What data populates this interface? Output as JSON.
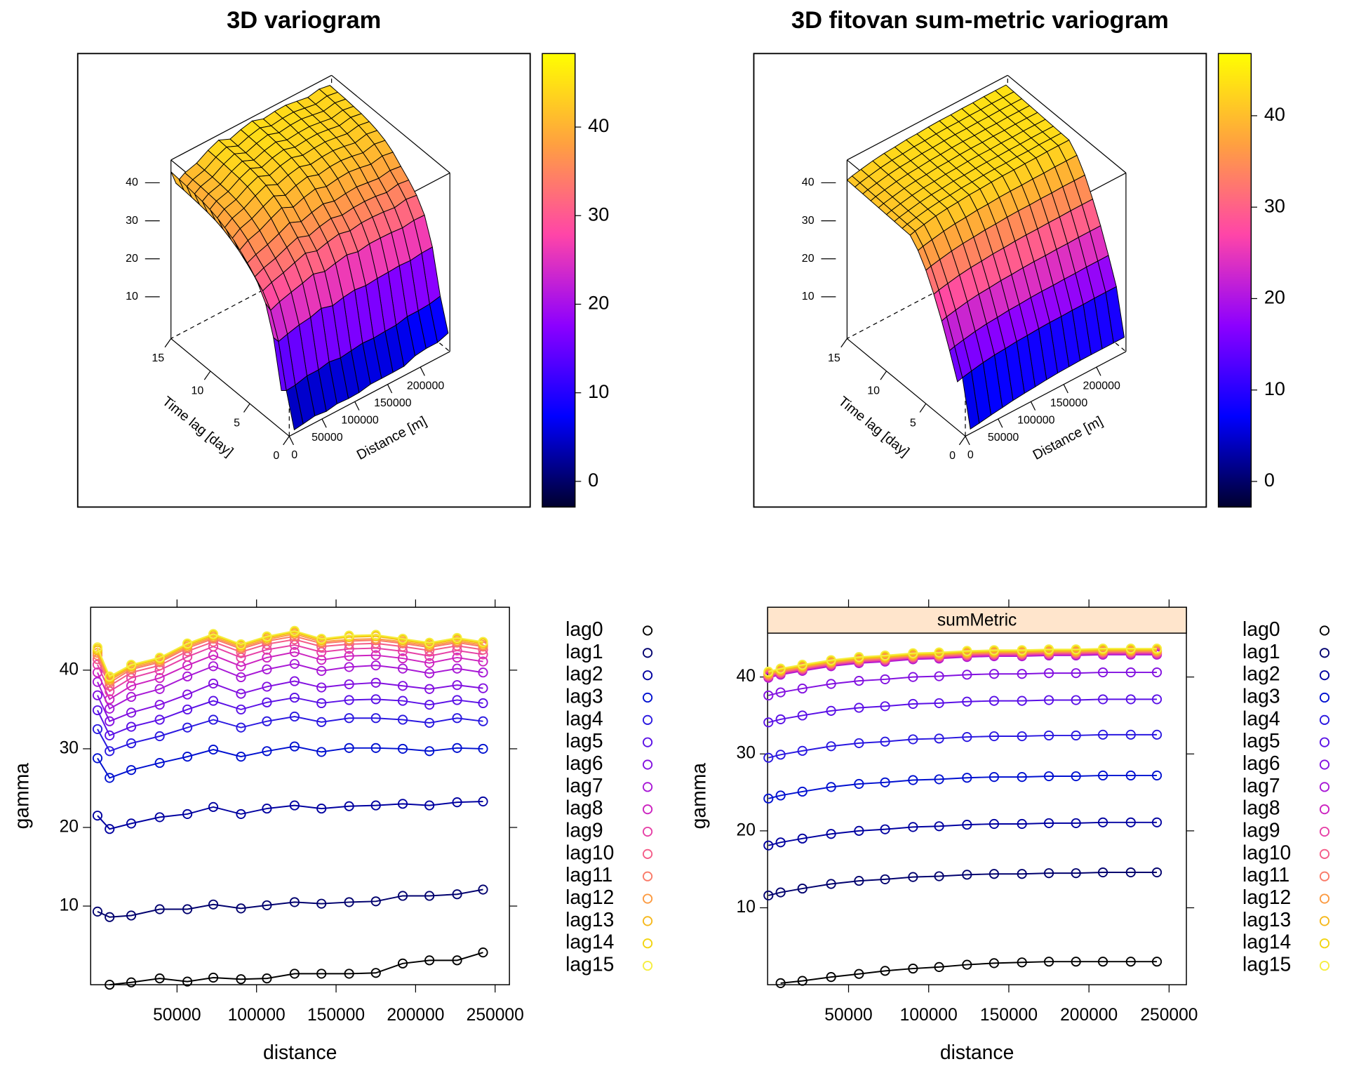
{
  "chart_data": [
    {
      "type": "surface3d",
      "title": "3D variogram",
      "xlabel": "Distance [m]",
      "ylabel": "Time lag [day]",
      "xlim": [
        0,
        245000
      ],
      "ylim": [
        0,
        15
      ],
      "zlim": [
        -1,
        46
      ],
      "xticks": [
        0,
        50000,
        100000,
        150000,
        200000
      ],
      "yticks": [
        0,
        5,
        10,
        15
      ],
      "zticks": [
        10,
        20,
        30,
        40
      ],
      "clim": [
        -2.9,
        48.3
      ],
      "cticks": [
        0,
        10,
        20,
        30,
        40
      ],
      "colormap": [
        "#00002e",
        "#0000ff",
        "#8c00ff",
        "#ff45a8",
        "#ffa040",
        "#ffff00"
      ]
    },
    {
      "type": "surface3d",
      "title": "3D fitovan sum-metric variogram",
      "xlabel": "Distance [m]",
      "ylabel": "Time lag [day]",
      "xlim": [
        0,
        245000
      ],
      "ylim": [
        0,
        15
      ],
      "zlim": [
        -1,
        46
      ],
      "xticks": [
        0,
        50000,
        100000,
        150000,
        200000
      ],
      "yticks": [
        0,
        5,
        10,
        15
      ],
      "zticks": [
        10,
        20,
        30,
        40
      ],
      "clim": [
        -2.8,
        46.8
      ],
      "cticks": [
        0,
        10,
        20,
        30,
        40
      ],
      "colormap": [
        "#00002e",
        "#0000ff",
        "#8c00ff",
        "#ff45a8",
        "#ffa040",
        "#ffff00"
      ]
    },
    {
      "type": "line",
      "xlabel": "distance",
      "ylabel": "gamma",
      "xlim": [
        -4300,
        259000
      ],
      "ylim": [
        0,
        48
      ],
      "xticks": [
        50000,
        100000,
        150000,
        200000,
        250000
      ],
      "yticks": [
        10,
        20,
        30,
        40
      ],
      "x": [
        0,
        7600,
        21200,
        39100,
        56500,
        72800,
        90200,
        106500,
        123900,
        140800,
        158200,
        175000,
        191900,
        208700,
        226100,
        242400
      ],
      "series": [
        {
          "name": "lag0",
          "color": "#000000",
          "values": [
            null,
            0,
            0.3,
            0.8,
            0.4,
            0.9,
            0.7,
            0.8,
            1.4,
            1.4,
            1.4,
            1.5,
            2.7,
            3.1,
            3.1,
            4.1
          ]
        },
        {
          "name": "lag1",
          "color": "#00006e",
          "values": [
            9.3,
            8.6,
            8.8,
            9.6,
            9.6,
            10.2,
            9.7,
            10.1,
            10.5,
            10.3,
            10.5,
            10.6,
            11.3,
            11.3,
            11.5,
            12.1
          ]
        },
        {
          "name": "lag2",
          "color": "#0000a0",
          "values": [
            21.5,
            19.8,
            20.5,
            21.3,
            21.7,
            22.6,
            21.7,
            22.4,
            22.8,
            22.4,
            22.7,
            22.8,
            23.0,
            22.8,
            23.2,
            23.3
          ]
        },
        {
          "name": "lag3",
          "color": "#0010d0",
          "values": [
            28.8,
            26.3,
            27.3,
            28.2,
            29.0,
            29.9,
            29.0,
            29.7,
            30.3,
            29.6,
            30.1,
            30.1,
            30.0,
            29.7,
            30.1,
            30.0
          ]
        },
        {
          "name": "lag4",
          "color": "#2a18e0",
          "values": [
            32.5,
            29.7,
            30.7,
            31.6,
            32.7,
            33.7,
            32.7,
            33.5,
            34.1,
            33.4,
            33.9,
            33.9,
            33.7,
            33.3,
            33.9,
            33.5
          ]
        },
        {
          "name": "lag5",
          "color": "#5a10e6",
          "values": [
            34.9,
            31.7,
            32.8,
            33.7,
            35.0,
            36.1,
            35.0,
            35.9,
            36.5,
            35.8,
            36.2,
            36.3,
            36.1,
            35.6,
            36.2,
            35.8
          ]
        },
        {
          "name": "lag6",
          "color": "#8210e0",
          "values": [
            36.8,
            33.5,
            34.6,
            35.6,
            36.9,
            38.3,
            37.0,
            37.9,
            38.6,
            37.8,
            38.2,
            38.4,
            38.0,
            37.6,
            38.1,
            37.7
          ]
        },
        {
          "name": "lag7",
          "color": "#a818d6",
          "values": [
            38.5,
            35.1,
            36.6,
            37.6,
            39.2,
            40.5,
            39.1,
            40.1,
            40.8,
            39.9,
            40.4,
            40.6,
            40.2,
            39.6,
            40.2,
            39.7
          ]
        },
        {
          "name": "lag8",
          "color": "#cc22c0",
          "values": [
            39.7,
            36.3,
            38.0,
            39.0,
            40.6,
            41.9,
            40.5,
            41.6,
            42.3,
            41.3,
            41.8,
            41.9,
            41.5,
            40.9,
            41.6,
            41.1
          ]
        },
        {
          "name": "lag9",
          "color": "#e640a6",
          "values": [
            40.7,
            37.3,
            39.0,
            40.0,
            41.7,
            43.0,
            41.6,
            42.6,
            43.2,
            42.3,
            42.7,
            42.8,
            42.4,
            41.8,
            42.5,
            42.0
          ]
        },
        {
          "name": "lag10",
          "color": "#f45c88",
          "values": [
            41.4,
            38.0,
            39.7,
            40.6,
            42.4,
            43.6,
            42.3,
            43.3,
            43.9,
            43.0,
            43.3,
            43.4,
            43.0,
            42.5,
            43.1,
            42.6
          ]
        },
        {
          "name": "lag11",
          "color": "#fa7a68",
          "values": [
            41.9,
            38.4,
            40.1,
            41.0,
            42.8,
            44.0,
            42.7,
            43.7,
            44.3,
            43.4,
            43.7,
            43.8,
            43.4,
            42.9,
            43.5,
            43.0
          ]
        },
        {
          "name": "lag12",
          "color": "#fc9a40",
          "values": [
            42.2,
            38.7,
            40.3,
            41.2,
            43.0,
            44.2,
            42.9,
            43.9,
            44.6,
            43.6,
            43.9,
            44.0,
            43.6,
            43.1,
            43.7,
            43.2
          ]
        },
        {
          "name": "lag13",
          "color": "#f6b81a",
          "values": [
            42.5,
            38.9,
            40.5,
            41.4,
            43.2,
            44.4,
            43.1,
            44.1,
            44.8,
            43.8,
            44.2,
            44.3,
            43.8,
            43.3,
            43.9,
            43.4
          ]
        },
        {
          "name": "lag14",
          "color": "#f2d410",
          "values": [
            42.7,
            39.1,
            40.6,
            41.5,
            43.3,
            44.5,
            43.2,
            44.2,
            44.9,
            43.9,
            44.3,
            44.4,
            43.9,
            43.4,
            44.0,
            43.5
          ]
        },
        {
          "name": "lag15",
          "color": "#f6ee40",
          "values": [
            42.9,
            39.2,
            40.7,
            41.6,
            43.4,
            44.6,
            43.3,
            44.3,
            45.0,
            44.0,
            44.4,
            44.5,
            44.0,
            43.5,
            44.1,
            43.6
          ]
        }
      ]
    },
    {
      "type": "line",
      "xlabel": "distance",
      "ylabel": "gamma",
      "strip": "sumMetric",
      "xlim": [
        -500,
        260800
      ],
      "ylim": [
        0,
        45.7
      ],
      "xticks": [
        50000,
        100000,
        150000,
        200000,
        250000
      ],
      "yticks": [
        10,
        20,
        30,
        40
      ],
      "x": [
        0,
        7600,
        21200,
        39100,
        56500,
        72800,
        90200,
        106500,
        123900,
        140800,
        158200,
        175000,
        191900,
        208700,
        226100,
        242400
      ],
      "series": [
        {
          "name": "lag0",
          "color": "#000000",
          "values": [
            null,
            0.2,
            0.5,
            1.0,
            1.4,
            1.8,
            2.1,
            2.3,
            2.6,
            2.8,
            2.9,
            3.0,
            3.0,
            3.0,
            3.0,
            3.0
          ]
        },
        {
          "name": "lag1",
          "color": "#00006e",
          "values": [
            11.6,
            12.0,
            12.5,
            13.1,
            13.5,
            13.7,
            14.0,
            14.1,
            14.3,
            14.4,
            14.4,
            14.5,
            14.5,
            14.6,
            14.6,
            14.6
          ]
        },
        {
          "name": "lag2",
          "color": "#0000a0",
          "values": [
            18.1,
            18.5,
            19.0,
            19.6,
            20.0,
            20.2,
            20.5,
            20.6,
            20.8,
            20.9,
            20.9,
            21.0,
            21.0,
            21.1,
            21.1,
            21.1
          ]
        },
        {
          "name": "lag3",
          "color": "#0010d0",
          "values": [
            24.2,
            24.6,
            25.1,
            25.7,
            26.1,
            26.3,
            26.6,
            26.7,
            26.9,
            27.0,
            27.0,
            27.1,
            27.1,
            27.2,
            27.2,
            27.2
          ]
        },
        {
          "name": "lag4",
          "color": "#2a18e0",
          "values": [
            29.5,
            29.9,
            30.4,
            31.0,
            31.4,
            31.6,
            31.9,
            32.0,
            32.2,
            32.3,
            32.3,
            32.4,
            32.4,
            32.5,
            32.5,
            32.5
          ]
        },
        {
          "name": "lag5",
          "color": "#5a10e6",
          "values": [
            34.1,
            34.5,
            35.0,
            35.6,
            36.0,
            36.2,
            36.5,
            36.6,
            36.8,
            36.9,
            36.9,
            37.0,
            37.0,
            37.1,
            37.1,
            37.1
          ]
        },
        {
          "name": "lag6",
          "color": "#8210e0",
          "values": [
            37.6,
            38.0,
            38.5,
            39.1,
            39.5,
            39.7,
            40.0,
            40.1,
            40.3,
            40.4,
            40.4,
            40.5,
            40.5,
            40.6,
            40.6,
            40.6
          ]
        },
        {
          "name": "lag7",
          "color": "#a818d6",
          "values": [
            39.9,
            40.3,
            40.8,
            41.4,
            41.8,
            42.0,
            42.3,
            42.4,
            42.6,
            42.7,
            42.7,
            42.8,
            42.8,
            42.9,
            42.9,
            42.9
          ]
        },
        {
          "name": "lag8",
          "color": "#cc22c0",
          "values": [
            40.0,
            40.4,
            40.9,
            41.5,
            41.9,
            42.1,
            42.4,
            42.5,
            42.7,
            42.8,
            42.8,
            42.9,
            42.9,
            43.0,
            43.0,
            43.0
          ]
        },
        {
          "name": "lag9",
          "color": "#e640a6",
          "values": [
            40.1,
            40.5,
            41.0,
            41.6,
            42.0,
            42.2,
            42.5,
            42.6,
            42.8,
            42.9,
            42.9,
            43.0,
            43.0,
            43.1,
            43.1,
            43.1
          ]
        },
        {
          "name": "lag10",
          "color": "#f45c88",
          "values": [
            40.2,
            40.6,
            41.1,
            41.7,
            42.1,
            42.3,
            42.6,
            42.7,
            42.9,
            43.0,
            43.0,
            43.1,
            43.1,
            43.2,
            43.2,
            43.2
          ]
        },
        {
          "name": "lag11",
          "color": "#fa7a68",
          "values": [
            40.3,
            40.7,
            41.2,
            41.8,
            42.2,
            42.4,
            42.7,
            42.8,
            43.0,
            43.1,
            43.1,
            43.2,
            43.2,
            43.3,
            43.3,
            43.3
          ]
        },
        {
          "name": "lag12",
          "color": "#fc9a40",
          "values": [
            40.4,
            40.8,
            41.3,
            41.9,
            42.3,
            42.5,
            42.8,
            42.9,
            43.1,
            43.2,
            43.2,
            43.3,
            43.3,
            43.4,
            43.4,
            43.4
          ]
        },
        {
          "name": "lag13",
          "color": "#f6b81a",
          "values": [
            40.5,
            40.9,
            41.4,
            42.0,
            42.4,
            42.6,
            42.9,
            43.0,
            43.2,
            43.3,
            43.3,
            43.4,
            43.4,
            43.5,
            43.5,
            43.5
          ]
        },
        {
          "name": "lag14",
          "color": "#f2d410",
          "values": [
            40.6,
            41.0,
            41.5,
            42.1,
            42.5,
            42.7,
            43.0,
            43.1,
            43.3,
            43.4,
            43.4,
            43.5,
            43.5,
            43.6,
            43.6,
            43.6
          ]
        },
        {
          "name": "lag15",
          "color": "#f6ee40",
          "values": [
            40.7,
            41.1,
            41.6,
            42.2,
            42.6,
            42.8,
            43.1,
            43.2,
            43.4,
            43.5,
            43.5,
            43.6,
            43.6,
            43.7,
            43.7,
            43.7
          ]
        }
      ]
    }
  ]
}
